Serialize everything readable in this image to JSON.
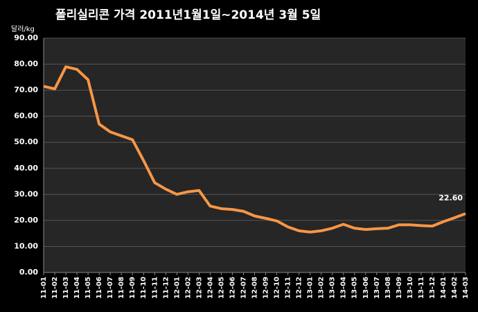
{
  "chart_data": {
    "type": "line",
    "title": "폴리실리콘 가격    2011년1월1일~2014년 3월 5일",
    "y_label": "달러/kg",
    "categories": [
      "11-01",
      "11-02",
      "11-03",
      "11-04",
      "11-05",
      "11-06",
      "11-07",
      "11-08",
      "11-09",
      "11-10",
      "11-11",
      "11-12",
      "12-01",
      "12-02",
      "12-03",
      "12-04",
      "12-05",
      "12-06",
      "12-07",
      "12-08",
      "12-09",
      "12-10",
      "12-11",
      "12-12",
      "13-01",
      "13-02",
      "13-03",
      "13-04",
      "13-05",
      "13-06",
      "13-07",
      "13-08",
      "13-09",
      "13-10",
      "13-11",
      "13-12",
      "14-01",
      "14-02",
      "14-03"
    ],
    "series": [
      {
        "color": "#f79646",
        "values": [
          71.5,
          70.5,
          79,
          78,
          74,
          57,
          54,
          52.5,
          51,
          43,
          34.5,
          32,
          30,
          31,
          31.5,
          25.5,
          24.5,
          24.2,
          23.5,
          21.7,
          20.8,
          19.8,
          17.5,
          16,
          15.5,
          16,
          17,
          18.5,
          17,
          16.5,
          16.8,
          17,
          18.3,
          18.3,
          18,
          17.8,
          19.5,
          21,
          22.6
        ],
        "value_labels": [
          null,
          null,
          null,
          null,
          null,
          null,
          null,
          null,
          null,
          null,
          null,
          null,
          null,
          null,
          null,
          null,
          null,
          null,
          null,
          null,
          null,
          null,
          null,
          null,
          null,
          null,
          null,
          null,
          null,
          null,
          null,
          null,
          null,
          null,
          null,
          null,
          null,
          null,
          "22.60"
        ]
      }
    ],
    "ylim": [
      0,
      90
    ],
    "yticks": [
      {
        "value": 0,
        "label": "0.00"
      },
      {
        "value": 10,
        "label": "10.00"
      },
      {
        "value": 20,
        "label": "20.00"
      },
      {
        "value": 30,
        "label": "30.00"
      },
      {
        "value": 40,
        "label": "40.00"
      },
      {
        "value": 50,
        "label": "50.00"
      },
      {
        "value": 60,
        "label": "60.00"
      },
      {
        "value": 70,
        "label": "70.00"
      },
      {
        "value": 80,
        "label": "80.00"
      },
      {
        "value": 90,
        "label": "90.00"
      }
    ],
    "grid": true
  }
}
